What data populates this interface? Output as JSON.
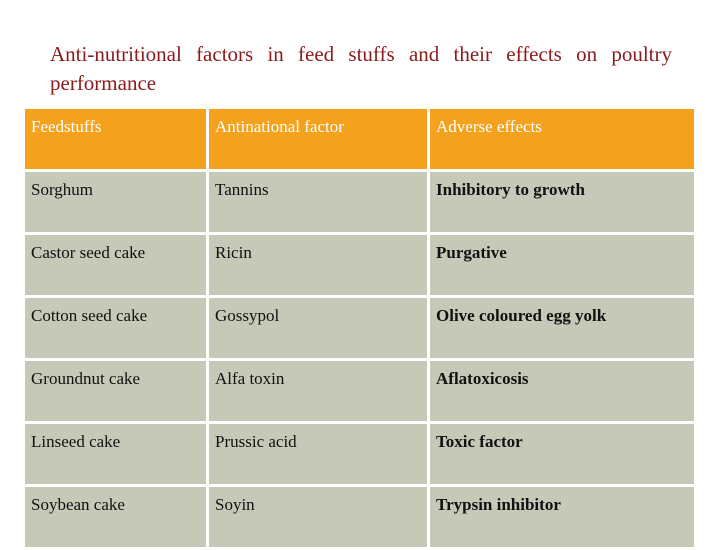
{
  "title": "Anti-nutritional factors in feed stuffs and their effects on poultry performance",
  "table": {
    "headers": [
      "Feedstuffs",
      "Antinational factor",
      "Adverse effects"
    ],
    "rows": [
      [
        "Sorghum",
        "Tannins",
        "Inhibitory to growth"
      ],
      [
        "Castor seed cake",
        "Ricin",
        "Purgative"
      ],
      [
        "Cotton seed cake",
        "Gossypol",
        "Olive coloured egg yolk"
      ],
      [
        "Groundnut cake",
        "Alfa toxin",
        "Aflatoxicosis"
      ],
      [
        "Linseed cake",
        "Prussic acid",
        "Toxic factor"
      ],
      [
        "Soybean cake",
        "Soyin",
        "Trypsin inhibitor"
      ]
    ]
  },
  "colors": {
    "header_bg": "#f4a11e",
    "body_bg": "#c6c8b8",
    "title_color": "#8b1a1a"
  }
}
